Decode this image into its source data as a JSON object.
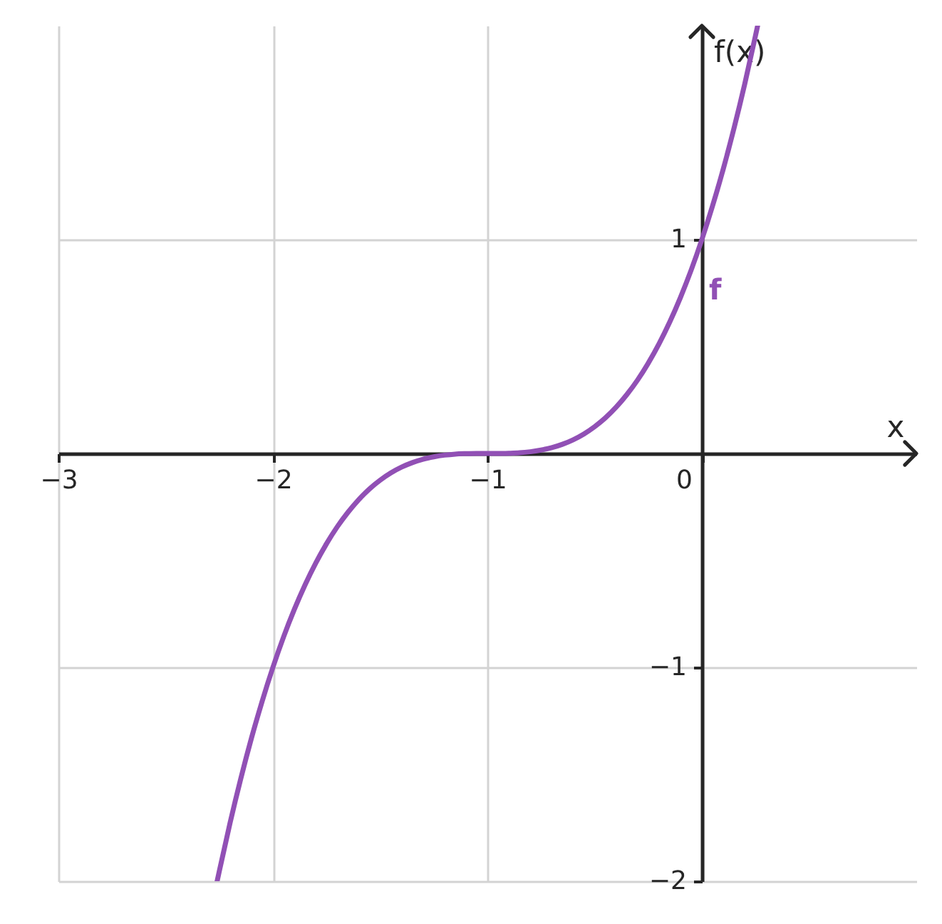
{
  "chart_data": {
    "type": "line",
    "xlabel": "x",
    "ylabel": "f(x)",
    "x": [
      -2.26,
      -2.25,
      -2.2,
      -2.15,
      -2.1,
      -2.05,
      -2,
      -1.95,
      -1.9,
      -1.85,
      -1.8,
      -1.75,
      -1.7,
      -1.65,
      -1.6,
      -1.55,
      -1.5,
      -1.45,
      -1.4,
      -1.35,
      -1.3,
      -1.25,
      -1.2,
      -1.15,
      -1.1,
      -1.05,
      -1,
      -0.95,
      -0.9,
      -0.85,
      -0.8,
      -0.75,
      -0.7,
      -0.65,
      -0.6,
      -0.55,
      -0.5,
      -0.45,
      -0.4,
      -0.35,
      -0.3,
      -0.25,
      -0.2,
      -0.15,
      -0.1,
      -0.05,
      0,
      0.05,
      0.1,
      0.15,
      0.2,
      0.25,
      0.26
    ],
    "series": [
      {
        "name": "f",
        "color": "#9150b5",
        "values": [
          -2,
          -1.953,
          -1.728,
          -1.521,
          -1.331,
          -1.158,
          -1,
          -0.857,
          -0.729,
          -0.614,
          -0.512,
          -0.422,
          -0.343,
          -0.275,
          -0.216,
          -0.166,
          -0.125,
          -0.091,
          -0.064,
          -0.043,
          -0.027,
          -0.016,
          -0.008,
          -0.003,
          -0.001,
          0,
          0,
          0,
          0.001,
          0.003,
          0.008,
          0.016,
          0.027,
          0.043,
          0.064,
          0.091,
          0.125,
          0.166,
          0.216,
          0.275,
          0.343,
          0.422,
          0.512,
          0.614,
          0.729,
          0.857,
          1,
          1.158,
          1.331,
          1.521,
          1.728,
          1.953,
          2
        ]
      }
    ],
    "xlim": [
      -3,
      1
    ],
    "ylim": [
      -2,
      2
    ],
    "xticks": [
      -3,
      -2,
      -1,
      0
    ],
    "yticks": [
      -2,
      -1,
      1
    ],
    "grid": true
  }
}
